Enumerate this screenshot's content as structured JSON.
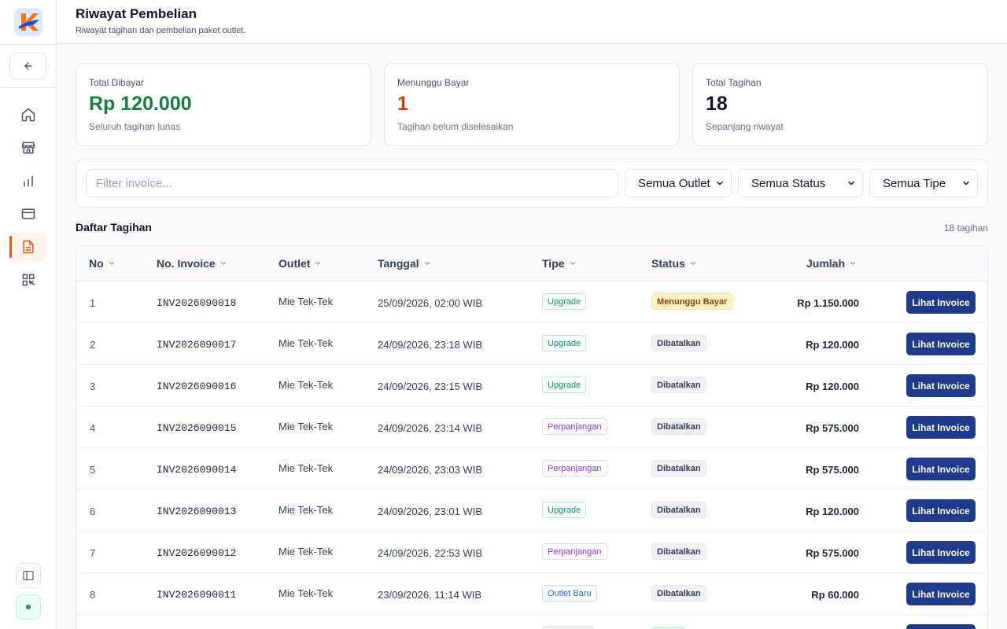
{
  "header": {
    "title": "Riwayat Pembelian",
    "subtitle": "Riwayat tagihan dan pembelian paket outlet."
  },
  "sidebar": {
    "items": [
      {
        "icon": "home-icon",
        "active": false
      },
      {
        "icon": "store-icon",
        "active": false
      },
      {
        "icon": "bar-chart-icon",
        "active": false
      },
      {
        "icon": "credit-card-icon",
        "active": false
      },
      {
        "icon": "document-icon",
        "active": true
      },
      {
        "icon": "qr-code-icon",
        "active": false
      }
    ]
  },
  "stats": [
    {
      "label": "Total Dibayar",
      "value": "Rp 120.000",
      "desc": "Seluruh tagihan lunas",
      "color": "#15803d"
    },
    {
      "label": "Menunggu Bayar",
      "value": "1",
      "desc": "Tagihan belum diselesaikan",
      "color": "#c2410c"
    },
    {
      "label": "Total Tagihan",
      "value": "18",
      "desc": "Sepanjang riwayat",
      "color": "#0f172a"
    }
  ],
  "filters": {
    "search_placeholder": "Filter invoice...",
    "outlet": "Semua Outlet",
    "status": "Semua Status",
    "type": "Semua Tipe"
  },
  "table": {
    "title": "Daftar Tagihan",
    "count": "18 tagihan",
    "columns": {
      "no": "No",
      "invoice": "No. Invoice",
      "outlet": "Outlet",
      "date": "Tanggal",
      "type": "Tipe",
      "status": "Status",
      "amount": "Jumlah"
    },
    "action_label": "Lihat Invoice",
    "rows": [
      {
        "no": "1",
        "invoice": "INV2026090018",
        "outlet": "Mie Tek-Tek",
        "date": "25/09/2026, 02:00 WIB",
        "type": "Upgrade",
        "status": "Menunggu Bayar",
        "amount": "Rp 1.150.000"
      },
      {
        "no": "2",
        "invoice": "INV2026090017",
        "outlet": "Mie Tek-Tek",
        "date": "24/09/2026, 23:18 WIB",
        "type": "Upgrade",
        "status": "Dibatalkan",
        "amount": "Rp 120.000"
      },
      {
        "no": "3",
        "invoice": "INV2026090016",
        "outlet": "Mie Tek-Tek",
        "date": "24/09/2026, 23:15 WIB",
        "type": "Upgrade",
        "status": "Dibatalkan",
        "amount": "Rp 120.000"
      },
      {
        "no": "4",
        "invoice": "INV2026090015",
        "outlet": "Mie Tek-Tek",
        "date": "24/09/2026, 23:14 WIB",
        "type": "Perpanjangan",
        "status": "Dibatalkan",
        "amount": "Rp 575.000"
      },
      {
        "no": "5",
        "invoice": "INV2026090014",
        "outlet": "Mie Tek-Tek",
        "date": "24/09/2026, 23:03 WIB",
        "type": "Perpanjangan",
        "status": "Dibatalkan",
        "amount": "Rp 575.000"
      },
      {
        "no": "6",
        "invoice": "INV2026090013",
        "outlet": "Mie Tek-Tek",
        "date": "24/09/2026, 23:01 WIB",
        "type": "Upgrade",
        "status": "Dibatalkan",
        "amount": "Rp 120.000"
      },
      {
        "no": "7",
        "invoice": "INV2026090012",
        "outlet": "Mie Tek-Tek",
        "date": "24/09/2026, 22:53 WIB",
        "type": "Perpanjangan",
        "status": "Dibatalkan",
        "amount": "Rp 575.000"
      },
      {
        "no": "8",
        "invoice": "INV2026090011",
        "outlet": "Mie Tek-Tek",
        "date": "23/09/2026, 11:14 WIB",
        "type": "Outlet Baru",
        "status": "Dibatalkan",
        "amount": "Rp 60.000"
      }
    ]
  },
  "colors": {
    "accent": "#ea580c",
    "primary_button": "#1e3a8a",
    "paid_green": "#15803d",
    "waiting_orange": "#c2410c"
  }
}
